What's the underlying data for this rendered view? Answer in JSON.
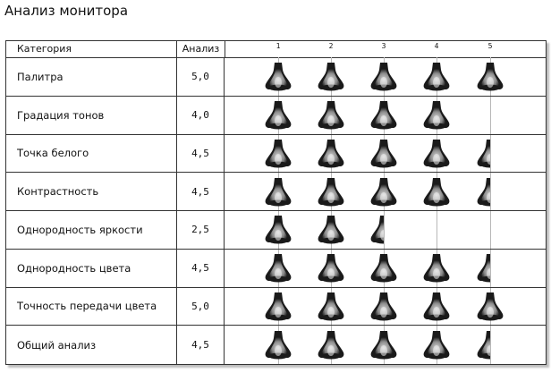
{
  "page_title": "Анализ монитора",
  "table": {
    "header_category": "Категория",
    "header_value": "Анализ",
    "scale_ticks": [
      "1",
      "2",
      "3",
      "4",
      "5"
    ],
    "rows": [
      {
        "label": "Палитра",
        "value": "5,0",
        "score": 5.0
      },
      {
        "label": "Градация тонов",
        "value": "4,0",
        "score": 4.0
      },
      {
        "label": "Точка белого",
        "value": "4,5",
        "score": 4.5
      },
      {
        "label": "Контрастность",
        "value": "4,5",
        "score": 4.5
      },
      {
        "label": "Однородность яркости",
        "value": "2,5",
        "score": 2.5
      },
      {
        "label": "Однородность цвета",
        "value": "4,5",
        "score": 4.5
      },
      {
        "label": "Точность передачи цвета",
        "value": "5,0",
        "score": 5.0
      },
      {
        "label": "Общий анализ",
        "value": "4,5",
        "score": 4.5
      }
    ]
  },
  "icon": {
    "name": "rating-bell-icon"
  },
  "colors": {
    "border": "#333333",
    "gridline": "#b8b8b8",
    "shadow": "#bdbdbd",
    "icon_dark": "#1a1a1a",
    "icon_light": "#d8d8d8"
  }
}
